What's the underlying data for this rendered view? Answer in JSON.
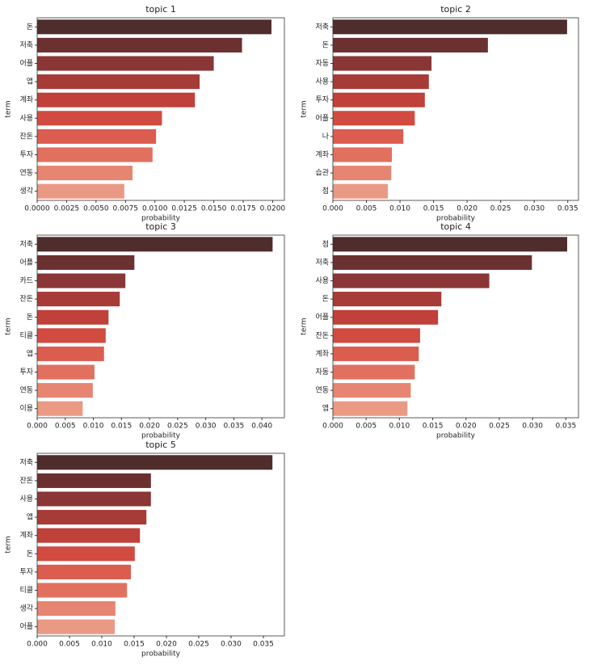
{
  "chart_data": [
    {
      "type": "bar",
      "orientation": "horizontal",
      "title": "topic 1",
      "x_label": "probability",
      "y_label": "term",
      "categories": [
        "돈",
        "저축",
        "어플",
        "앱",
        "계좌",
        "사용",
        "잔돈",
        "투자",
        "연동",
        "생각"
      ],
      "values": [
        0.0199,
        0.0174,
        0.015,
        0.0138,
        0.0134,
        0.0106,
        0.0101,
        0.0098,
        0.0081,
        0.0074
      ],
      "colors": [
        "#4f2d2d",
        "#6b3030",
        "#8a3636",
        "#a63b37",
        "#c0403a",
        "#d24b40",
        "#db5d50",
        "#e2705f",
        "#e68571",
        "#ea9a84"
      ],
      "xlim": [
        0,
        0.021
      ],
      "xticks": [
        {
          "value": 0,
          "label": "0.0000"
        },
        {
          "value": 0.0025,
          "label": "0.0025"
        },
        {
          "value": 0.005,
          "label": "0.0050"
        },
        {
          "value": 0.0075,
          "label": "0.0075"
        },
        {
          "value": 0.01,
          "label": "0.0100"
        },
        {
          "value": 0.0125,
          "label": "0.0125"
        },
        {
          "value": 0.015,
          "label": "0.0150"
        },
        {
          "value": 0.0175,
          "label": "0.0175"
        },
        {
          "value": 0.02,
          "label": "0.0200"
        }
      ]
    },
    {
      "type": "bar",
      "orientation": "horizontal",
      "title": "topic 2",
      "x_label": "probability",
      "y_label": "term",
      "categories": [
        "저축",
        "돈",
        "자동",
        "사용",
        "투자",
        "어플",
        "나",
        "계좌",
        "습관",
        "점"
      ],
      "values": [
        0.0349,
        0.0231,
        0.0147,
        0.0143,
        0.0137,
        0.0122,
        0.0105,
        0.0088,
        0.0087,
        0.0082
      ],
      "colors": [
        "#4f2d2d",
        "#6b3030",
        "#8a3636",
        "#a63b37",
        "#c0403a",
        "#d24b40",
        "#db5d50",
        "#e2705f",
        "#e68571",
        "#ea9a84"
      ],
      "xlim": [
        0,
        0.0366
      ],
      "xticks": [
        {
          "value": 0,
          "label": "0.000"
        },
        {
          "value": 0.005,
          "label": "0.005"
        },
        {
          "value": 0.01,
          "label": "0.010"
        },
        {
          "value": 0.015,
          "label": "0.015"
        },
        {
          "value": 0.02,
          "label": "0.020"
        },
        {
          "value": 0.025,
          "label": "0.025"
        },
        {
          "value": 0.03,
          "label": "0.030"
        },
        {
          "value": 0.035,
          "label": "0.035"
        }
      ]
    },
    {
      "type": "bar",
      "orientation": "horizontal",
      "title": "topic 3",
      "x_label": "probability",
      "y_label": "term",
      "categories": [
        "저축",
        "어플",
        "카드",
        "잔돈",
        "돈",
        "티클",
        "앱",
        "투자",
        "연동",
        "이용"
      ],
      "values": [
        0.0419,
        0.0173,
        0.0157,
        0.0147,
        0.0127,
        0.0122,
        0.0119,
        0.0102,
        0.0099,
        0.0081
      ],
      "colors": [
        "#4f2d2d",
        "#6b3030",
        "#8a3636",
        "#a63b37",
        "#c0403a",
        "#d24b40",
        "#db5d50",
        "#e2705f",
        "#e68571",
        "#ea9a84"
      ],
      "xlim": [
        0,
        0.044
      ],
      "xticks": [
        {
          "value": 0,
          "label": "0.000"
        },
        {
          "value": 0.005,
          "label": "0.005"
        },
        {
          "value": 0.01,
          "label": "0.010"
        },
        {
          "value": 0.015,
          "label": "0.015"
        },
        {
          "value": 0.02,
          "label": "0.020"
        },
        {
          "value": 0.025,
          "label": "0.025"
        },
        {
          "value": 0.03,
          "label": "0.030"
        },
        {
          "value": 0.035,
          "label": "0.035"
        },
        {
          "value": 0.04,
          "label": "0.040"
        }
      ]
    },
    {
      "type": "bar",
      "orientation": "horizontal",
      "title": "topic 4",
      "x_label": "probability",
      "y_label": "term",
      "categories": [
        "점",
        "저축",
        "사용",
        "돈",
        "어플",
        "잔돈",
        "계좌",
        "자동",
        "연동",
        "앱"
      ],
      "values": [
        0.0352,
        0.0299,
        0.0235,
        0.0163,
        0.0158,
        0.0131,
        0.0129,
        0.0123,
        0.0117,
        0.0112
      ],
      "colors": [
        "#4f2d2d",
        "#6b3030",
        "#8a3636",
        "#a63b37",
        "#c0403a",
        "#d24b40",
        "#db5d50",
        "#e2705f",
        "#e68571",
        "#ea9a84"
      ],
      "xlim": [
        0,
        0.0369
      ],
      "xticks": [
        {
          "value": 0,
          "label": "0.000"
        },
        {
          "value": 0.005,
          "label": "0.005"
        },
        {
          "value": 0.01,
          "label": "0.010"
        },
        {
          "value": 0.015,
          "label": "0.015"
        },
        {
          "value": 0.02,
          "label": "0.020"
        },
        {
          "value": 0.025,
          "label": "0.025"
        },
        {
          "value": 0.03,
          "label": "0.030"
        },
        {
          "value": 0.035,
          "label": "0.035"
        }
      ]
    },
    {
      "type": "bar",
      "orientation": "horizontal",
      "title": "topic 5",
      "x_label": "probability",
      "y_label": "term",
      "categories": [
        "저축",
        "잔돈",
        "사용",
        "앱",
        "계좌",
        "돈",
        "투자",
        "티클",
        "생각",
        "어플"
      ],
      "values": [
        0.0364,
        0.0176,
        0.0176,
        0.0169,
        0.0159,
        0.0151,
        0.0145,
        0.0139,
        0.0121,
        0.012
      ],
      "colors": [
        "#4f2d2d",
        "#6b3030",
        "#8a3636",
        "#a63b37",
        "#c0403a",
        "#d24b40",
        "#db5d50",
        "#e2705f",
        "#e68571",
        "#ea9a84"
      ],
      "xlim": [
        0,
        0.03825
      ],
      "xticks": [
        {
          "value": 0,
          "label": "0.000"
        },
        {
          "value": 0.005,
          "label": "0.005"
        },
        {
          "value": 0.01,
          "label": "0.010"
        },
        {
          "value": 0.015,
          "label": "0.015"
        },
        {
          "value": 0.02,
          "label": "0.020"
        },
        {
          "value": 0.025,
          "label": "0.025"
        },
        {
          "value": 0.03,
          "label": "0.030"
        },
        {
          "value": 0.035,
          "label": "0.035"
        }
      ]
    }
  ]
}
